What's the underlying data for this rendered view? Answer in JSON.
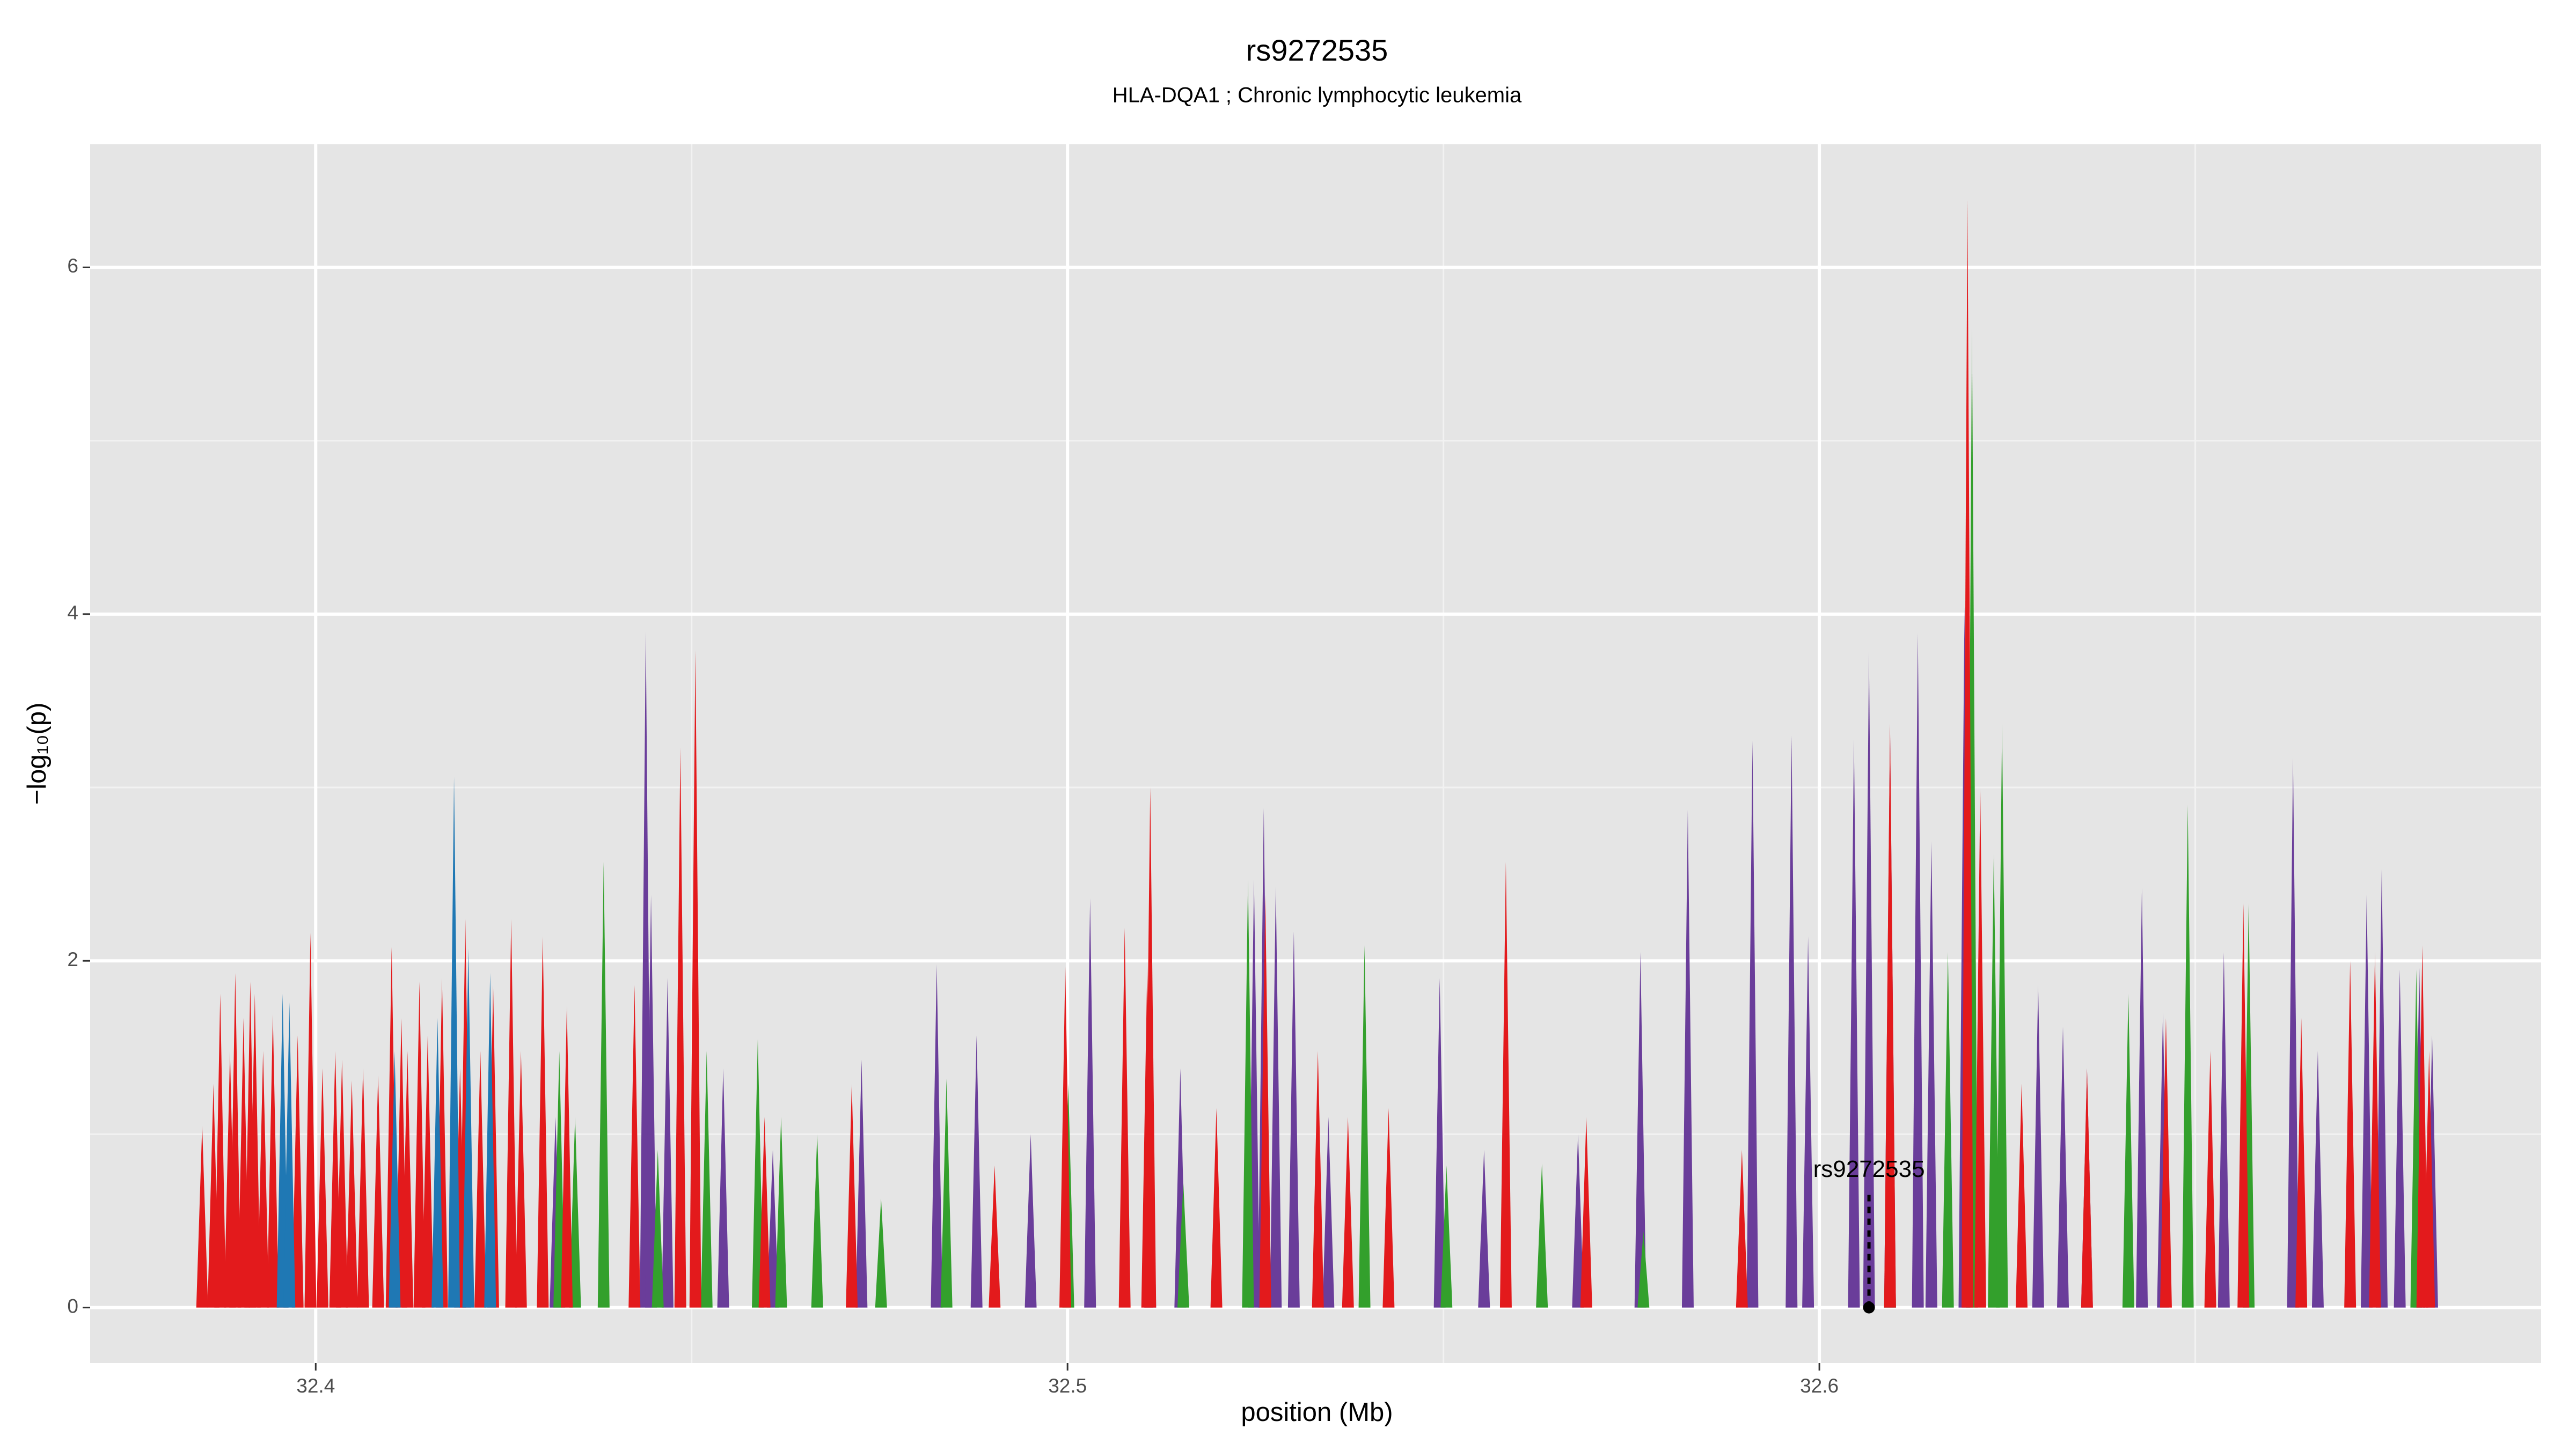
{
  "chart_data": {
    "type": "spike",
    "title": "rs9272535",
    "subtitle": "HLA-DQA1 ; Chronic lymphocytic leukemia",
    "x_label": "position (Mb)",
    "y_label": "−log₁₀(p)",
    "xlim": [
      32.37,
      32.696
    ],
    "ylim": [
      -0.32,
      6.71
    ],
    "xticks": [
      32.4,
      32.5,
      32.6
    ],
    "yticks": [
      0,
      2,
      4,
      6
    ],
    "x_minor_grid": [
      32.45,
      32.55,
      32.65
    ],
    "y_minor_grid": [
      1,
      3,
      5
    ],
    "grid": true,
    "series": [
      {
        "color": "#6a3d9a",
        "x": [
          32.4319,
          32.4439,
          32.4446,
          32.4468,
          32.4542,
          32.4608,
          32.4726,
          32.4826,
          32.4879,
          32.4951,
          32.503,
          32.511,
          32.515,
          32.5248,
          32.5261,
          32.5277,
          32.5301,
          32.5347,
          32.5495,
          32.5554,
          32.5679,
          32.5762,
          32.5825,
          32.5911,
          32.5963,
          32.5985,
          32.6046,
          32.6066,
          32.6094,
          32.6131,
          32.6149,
          32.6193,
          32.6291,
          32.6324,
          32.6356,
          32.6429,
          32.6457,
          32.6538,
          32.663,
          32.6663,
          32.6728,
          32.6748,
          32.6772,
          32.6798,
          32.6815
        ],
        "values": [
          1.1,
          3.9,
          2.38,
          1.9,
          1.38,
          0.91,
          1.43,
          1.98,
          1.57,
          1.0,
          2.36,
          1.86,
          1.38,
          2.47,
          2.88,
          2.43,
          2.17,
          1.1,
          1.9,
          0.91,
          1.0,
          2.05,
          2.87,
          3.27,
          3.3,
          2.14,
          3.28,
          3.78,
          3.35,
          3.89,
          2.69,
          4.04,
          1.86,
          1.62,
          1.38,
          2.42,
          1.7,
          2.05,
          3.17,
          1.48,
          2.38,
          2.53,
          1.95,
          1.96,
          1.57
        ]
      },
      {
        "color": "#33a02c",
        "x": [
          32.4324,
          32.4345,
          32.4383,
          32.4455,
          32.452,
          32.4588,
          32.4619,
          32.4667,
          32.4752,
          32.4839,
          32.5001,
          32.5154,
          32.524,
          32.5395,
          32.5504,
          32.5631,
          32.5766,
          32.6094,
          32.6171,
          32.6203,
          32.6232,
          32.6243,
          32.6411,
          32.649,
          32.6571,
          32.6794
        ],
        "values": [
          1.48,
          1.1,
          2.57,
          0.91,
          1.48,
          1.55,
          1.1,
          1.0,
          0.63,
          1.32,
          1.29,
          0.72,
          2.47,
          2.09,
          0.82,
          0.83,
          0.44,
          2.33,
          2.05,
          5.65,
          2.62,
          3.37,
          1.81,
          2.9,
          2.33,
          1.95
        ]
      },
      {
        "color": "#e31a1c",
        "x": [
          32.3849,
          32.3864,
          32.3873,
          32.3886,
          32.3893,
          32.3904,
          32.3913,
          32.3919,
          32.393,
          32.3943,
          32.3956,
          32.3976,
          32.3993,
          32.4009,
          32.4026,
          32.4035,
          32.4048,
          32.4063,
          32.4083,
          32.4101,
          32.4114,
          32.4122,
          32.4138,
          32.4149,
          32.4168,
          32.4192,
          32.4199,
          32.4219,
          32.4236,
          32.426,
          32.4273,
          32.4302,
          32.4334,
          32.4424,
          32.4485,
          32.4505,
          32.4597,
          32.4713,
          32.4903,
          32.4997,
          32.5076,
          32.5106,
          32.511,
          32.5198,
          32.5263,
          32.5333,
          32.5373,
          32.5427,
          32.5583,
          32.569,
          32.5897,
          32.6094,
          32.6197,
          32.6214,
          32.6269,
          32.6356,
          32.6461,
          32.652,
          32.6564,
          32.6641,
          32.6706,
          32.6739,
          32.6802,
          32.6811
        ],
        "values": [
          1.05,
          1.29,
          1.81,
          1.48,
          1.93,
          1.67,
          1.88,
          1.81,
          1.48,
          1.69,
          1.46,
          1.57,
          2.16,
          1.38,
          1.48,
          1.43,
          1.31,
          1.38,
          1.34,
          2.08,
          1.67,
          1.48,
          1.88,
          1.57,
          1.9,
          1.38,
          2.24,
          1.48,
          1.86,
          2.24,
          1.48,
          2.14,
          1.74,
          1.86,
          3.23,
          3.79,
          1.1,
          1.29,
          0.82,
          1.97,
          2.19,
          1.97,
          3.0,
          1.15,
          2.38,
          1.48,
          1.1,
          1.15,
          2.57,
          1.1,
          0.91,
          3.37,
          6.39,
          3.0,
          1.29,
          1.38,
          1.67,
          1.48,
          2.33,
          1.67,
          2.0,
          2.05,
          2.09,
          1.48
        ]
      },
      {
        "color": "#1f78b4",
        "x": [
          32.3956,
          32.3965,
          32.4105,
          32.4162,
          32.4184,
          32.4203,
          32.4232
        ],
        "values": [
          1.81,
          1.76,
          1.48,
          1.67,
          3.06,
          2.07,
          1.93
        ]
      }
    ],
    "annotations": [
      {
        "text": "rs9272535",
        "x": 32.6066,
        "y": 0
      }
    ]
  }
}
